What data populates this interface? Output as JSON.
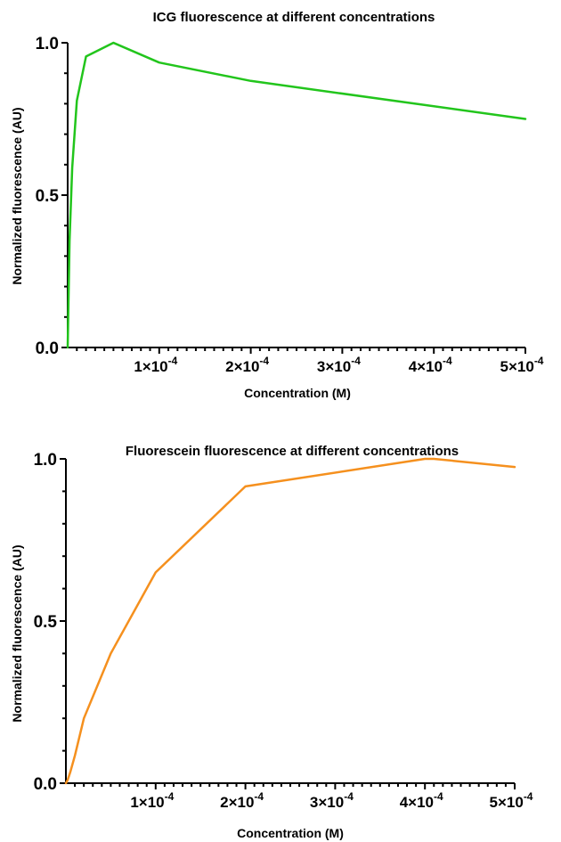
{
  "chart_data": [
    {
      "type": "line",
      "title": "ICG fluorescence at different concentrations",
      "xlabel": "Concentration (M)",
      "ylabel": "Normalized fluorescence (AU)",
      "xlim": [
        0,
        0.0005
      ],
      "ylim": [
        0,
        1.0
      ],
      "yticks": [
        {
          "value": 0,
          "label": "0.0"
        },
        {
          "value": 0.5,
          "label": "0.5"
        },
        {
          "value": 1.0,
          "label": "1.0"
        }
      ],
      "xticks": [
        {
          "value": 0.0001,
          "mant": "1×10",
          "exp": "-4"
        },
        {
          "value": 0.0002,
          "mant": "2×10",
          "exp": "-4"
        },
        {
          "value": 0.0003,
          "mant": "3×10",
          "exp": "-4"
        },
        {
          "value": 0.0004,
          "mant": "4×10",
          "exp": "-4"
        },
        {
          "value": 0.0005,
          "mant": "5×10",
          "exp": "-4"
        }
      ],
      "color": "#22c51c",
      "series": [
        {
          "x": [
            0,
            2e-06,
            5e-06,
            1e-05,
            2e-05,
            5e-05,
            0.0001,
            0.0002,
            0.0005
          ],
          "y": [
            0.0,
            0.35,
            0.59,
            0.81,
            0.955,
            1.0,
            0.935,
            0.875,
            0.75
          ]
        }
      ]
    },
    {
      "type": "line",
      "title": "Fluorescein fluorescence at different concentrations",
      "xlabel": "Concentration (M)",
      "ylabel": "Normalized fluorescence (AU)",
      "xlim": [
        0,
        0.0005
      ],
      "ylim": [
        0,
        1.0
      ],
      "yticks": [
        {
          "value": 0,
          "label": "0.0"
        },
        {
          "value": 0.5,
          "label": "0.5"
        },
        {
          "value": 1.0,
          "label": "1.0"
        }
      ],
      "xticks": [
        {
          "value": 0.0001,
          "mant": "1×10",
          "exp": "-4"
        },
        {
          "value": 0.0002,
          "mant": "2×10",
          "exp": "-4"
        },
        {
          "value": 0.0003,
          "mant": "3×10",
          "exp": "-4"
        },
        {
          "value": 0.0004,
          "mant": "4×10",
          "exp": "-4"
        },
        {
          "value": 0.0005,
          "mant": "5×10",
          "exp": "-4"
        }
      ],
      "color": "#f5901e",
      "series": [
        {
          "x": [
            0,
            2e-06,
            5e-06,
            1e-05,
            2e-05,
            5e-05,
            0.0001,
            0.0002,
            0.0004,
            0.00041,
            0.0005
          ],
          "y": [
            0.0,
            0.01,
            0.035,
            0.085,
            0.2,
            0.4,
            0.65,
            0.915,
            1.0,
            1.0,
            0.975
          ]
        }
      ]
    }
  ]
}
